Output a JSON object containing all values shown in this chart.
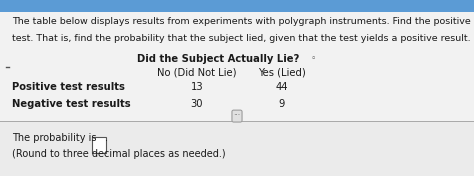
{
  "title_line1": "The table below displays results from experiments with polygraph instruments. Find the positive predictive value for the",
  "title_line2": "test. That is, find the probability that the subject lied, given that the test yields a positive result.",
  "col_header_main": "Did the Subject Actually Lie?",
  "col_header2_icon": "◦",
  "col_sub1": "No (Did Not Lie)",
  "col_sub2": "Yes (Lied)",
  "row1_label": "Positive test results",
  "row2_label": "Negative test results",
  "row1_val1": "13",
  "row1_val2": "44",
  "row2_val1": "30",
  "row2_val2": "9",
  "footer_line1a": "The probability is ",
  "footer_line1b": ".",
  "footer_line2": "(Round to three decimal places as needed.)",
  "bg_top": "#5b9bd5",
  "bg_main": "#f2f2f2",
  "bg_footer": "#e8e8e8",
  "text_color": "#1a1a1a",
  "title_fontsize": 6.8,
  "table_header_fontsize": 7.2,
  "table_body_fontsize": 7.2,
  "footer_fontsize": 7.0,
  "divider_color": "#aaaaaa",
  "left_tick_color": "#555555"
}
